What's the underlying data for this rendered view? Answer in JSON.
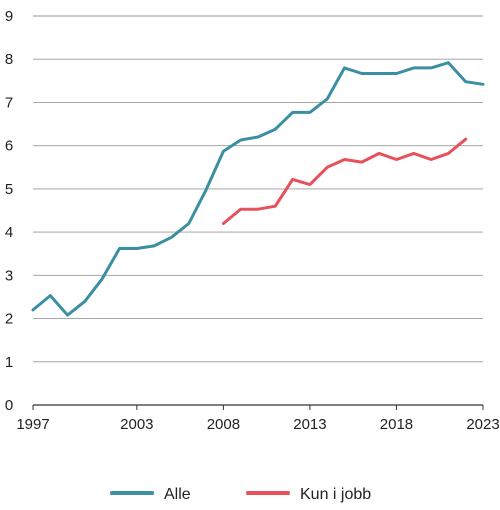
{
  "chart_data": {
    "type": "line",
    "title": "",
    "xlabel": "",
    "ylabel": "",
    "xlim": [
      1997,
      2023
    ],
    "ylim": [
      0,
      9
    ],
    "x_ticks": [
      1997,
      2003,
      2008,
      2013,
      2018,
      2023
    ],
    "y_ticks": [
      0,
      1,
      2,
      3,
      4,
      5,
      6,
      7,
      8,
      9
    ],
    "grid": "horizontal",
    "legend_position": "bottom",
    "series": [
      {
        "name": "Alle",
        "color": "#3a8fa3",
        "x": [
          1997,
          1998,
          1999,
          2000,
          2001,
          2002,
          2003,
          2004,
          2005,
          2006,
          2007,
          2008,
          2009,
          2010,
          2011,
          2012,
          2013,
          2014,
          2015,
          2016,
          2017,
          2018,
          2019,
          2020,
          2021,
          2022,
          2023
        ],
        "y": [
          2.2,
          2.53,
          2.08,
          2.4,
          2.92,
          3.62,
          3.62,
          3.68,
          3.88,
          4.2,
          4.98,
          5.87,
          6.13,
          6.2,
          6.38,
          6.77,
          6.77,
          7.08,
          7.8,
          7.67,
          7.67,
          7.67,
          7.8,
          7.8,
          7.92,
          7.48,
          7.42
        ]
      },
      {
        "name": "Kun i jobb",
        "color": "#e8505b",
        "x": [
          2008,
          2009,
          2010,
          2011,
          2012,
          2013,
          2014,
          2015,
          2016,
          2017,
          2018,
          2019,
          2020,
          2021,
          2022
        ],
        "y": [
          4.2,
          4.53,
          4.53,
          4.6,
          5.22,
          5.1,
          5.5,
          5.68,
          5.62,
          5.82,
          5.68,
          5.82,
          5.68,
          5.82,
          6.15
        ]
      }
    ]
  }
}
